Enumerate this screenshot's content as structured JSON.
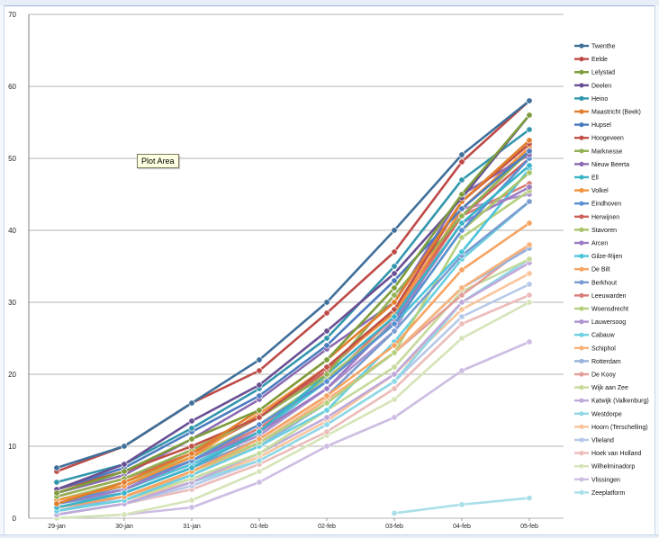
{
  "tooltip": "Plot Area",
  "chart_data": {
    "type": "line",
    "title": "",
    "xlabel": "",
    "ylabel": "",
    "ylim": [
      0,
      70
    ],
    "yticks": [
      0,
      10,
      20,
      30,
      40,
      50,
      60,
      70
    ],
    "grid": "horizontal",
    "legend_position": "right",
    "categories": [
      "29-jan",
      "30-jan",
      "31-jan",
      "01-feb",
      "02-feb",
      "03-feb",
      "04-feb",
      "05-feb"
    ],
    "series": [
      {
        "name": "Twenthe",
        "color": "#3f6f9a",
        "values": [
          7,
          10,
          16,
          22,
          30,
          40,
          50.5,
          58
        ]
      },
      {
        "name": "Eelde",
        "color": "#be4b48",
        "values": [
          6.5,
          10,
          16,
          20.5,
          28.5,
          37,
          49.5,
          58
        ]
      },
      {
        "name": "Lelystad",
        "color": "#7d9d3c",
        "values": [
          3.5,
          6.5,
          11,
          15,
          22,
          32,
          45,
          56
        ]
      },
      {
        "name": "Deelen",
        "color": "#6a4f94",
        "values": [
          4,
          7.5,
          13.5,
          18.5,
          26,
          34,
          44.5,
          56
        ]
      },
      {
        "name": "Heino",
        "color": "#3296ad",
        "values": [
          5,
          7.5,
          12.5,
          18,
          25,
          35,
          47,
          54
        ]
      },
      {
        "name": "Maastricht (Beek)",
        "color": "#e07e2d",
        "values": [
          2,
          5,
          9,
          15,
          22,
          30,
          44,
          52.5
        ]
      },
      {
        "name": "Hupsel",
        "color": "#4b7cbf",
        "values": [
          4,
          7,
          12,
          17,
          24,
          33,
          43,
          51
        ]
      },
      {
        "name": "Hoogeveen",
        "color": "#c05048",
        "values": [
          4,
          6.5,
          10,
          14,
          21,
          29,
          44,
          52
        ]
      },
      {
        "name": "Marknesse",
        "color": "#94b055",
        "values": [
          3,
          5.5,
          9.5,
          14,
          20,
          31,
          42,
          51
        ]
      },
      {
        "name": "Nieuw Beerta",
        "color": "#8c6bb0",
        "values": [
          3.5,
          6,
          11,
          16.5,
          23.5,
          30,
          45,
          50.5
        ]
      },
      {
        "name": "Ell",
        "color": "#3bb3c8",
        "values": [
          1.5,
          3.5,
          7,
          12,
          20,
          28,
          41,
          49
        ]
      },
      {
        "name": "Volkel",
        "color": "#f0933e",
        "values": [
          2.5,
          4.5,
          8.5,
          14.5,
          21,
          28.5,
          43,
          51.5
        ]
      },
      {
        "name": "Eindhoven",
        "color": "#5a8fd2",
        "values": [
          2,
          4.5,
          8,
          13,
          19,
          27,
          40,
          50
        ]
      },
      {
        "name": "Herwijnen",
        "color": "#d0605a",
        "values": [
          3,
          5.5,
          9,
          14,
          20.5,
          29,
          42,
          50
        ]
      },
      {
        "name": "Stavoren",
        "color": "#a9c46a",
        "values": [
          2.5,
          5,
          8.5,
          13,
          19.5,
          27,
          40,
          48
        ]
      },
      {
        "name": "Arcen",
        "color": "#9c7cc2",
        "values": [
          2,
          4,
          8,
          12,
          18,
          27.5,
          41,
          46
        ]
      },
      {
        "name": "Gilze-Rijen",
        "color": "#4ec4da",
        "values": [
          2,
          4,
          7.5,
          12,
          19,
          27,
          37,
          48.5
        ]
      },
      {
        "name": "De Bilt",
        "color": "#f7a462",
        "values": [
          1.5,
          3,
          6.5,
          11,
          17,
          24,
          34.5,
          41
        ]
      },
      {
        "name": "Berkhout",
        "color": "#7a9cd0",
        "values": [
          2,
          3.5,
          7,
          11,
          17,
          26,
          36.5,
          44
        ]
      },
      {
        "name": "Leeuwarden",
        "color": "#d87c78",
        "values": [
          2.5,
          4.5,
          8,
          12.5,
          19,
          28,
          42,
          46.5
        ]
      },
      {
        "name": "Woensdrecht",
        "color": "#b5cf7f",
        "values": [
          1.5,
          3,
          6.5,
          10.5,
          16,
          23,
          39,
          45.5
        ]
      },
      {
        "name": "Lauwersoog",
        "color": "#ae93cf",
        "values": [
          2,
          4,
          7.5,
          11.5,
          18,
          26,
          43,
          45
        ]
      },
      {
        "name": "Cabauw",
        "color": "#6bd0e2",
        "values": [
          1,
          2.5,
          6,
          10,
          15,
          24.5,
          36,
          44
        ]
      },
      {
        "name": "Schiphol",
        "color": "#f8b37d",
        "values": [
          1.5,
          3,
          6,
          10.5,
          16.5,
          23,
          32,
          38
        ]
      },
      {
        "name": "Rotterdam",
        "color": "#96b2de",
        "values": [
          1,
          3,
          6,
          10,
          16,
          23,
          32,
          37.5
        ]
      },
      {
        "name": "De Kooy",
        "color": "#e29d99",
        "values": [
          1.5,
          3,
          6,
          10,
          16,
          23,
          31,
          38
        ]
      },
      {
        "name": "Wijk aan Zee",
        "color": "#c6da9c",
        "values": [
          1,
          2.5,
          5.5,
          9,
          15,
          21,
          31.5,
          36
        ]
      },
      {
        "name": "Katwijk (Valkenburg)",
        "color": "#bfa9d9",
        "values": [
          0.5,
          2,
          5,
          9,
          14,
          20,
          30,
          35.5
        ]
      },
      {
        "name": "Westdorpe",
        "color": "#8fd8e6",
        "values": [
          0.5,
          2,
          5,
          8,
          13,
          19,
          30,
          36
        ]
      },
      {
        "name": "Hoorn (Terschelling)",
        "color": "#f9c49b",
        "values": [
          1,
          2.5,
          5,
          8.5,
          13.5,
          20,
          29,
          34
        ]
      },
      {
        "name": "Vlieland",
        "color": "#b6c9e8",
        "values": [
          0.5,
          2,
          4.5,
          8,
          13,
          19,
          28,
          32.5
        ]
      },
      {
        "name": "Hoek van Holland",
        "color": "#ebbcb9",
        "values": [
          0.5,
          2,
          4,
          7.5,
          12,
          18,
          27,
          31
        ]
      },
      {
        "name": "Wilhelminadorp",
        "color": "#d5e4b8",
        "values": [
          0,
          0.5,
          2.5,
          6.5,
          11.5,
          16.5,
          25,
          30
        ]
      },
      {
        "name": "Vlissingen",
        "color": "#cdbde2",
        "values": [
          0,
          0.5,
          1.5,
          5,
          10,
          14,
          20.5,
          24.5
        ]
      },
      {
        "name": "Zeeplatform",
        "color": "#aadfe9",
        "values": [
          null,
          null,
          null,
          null,
          null,
          0.7,
          1.9,
          2.8
        ]
      }
    ]
  }
}
